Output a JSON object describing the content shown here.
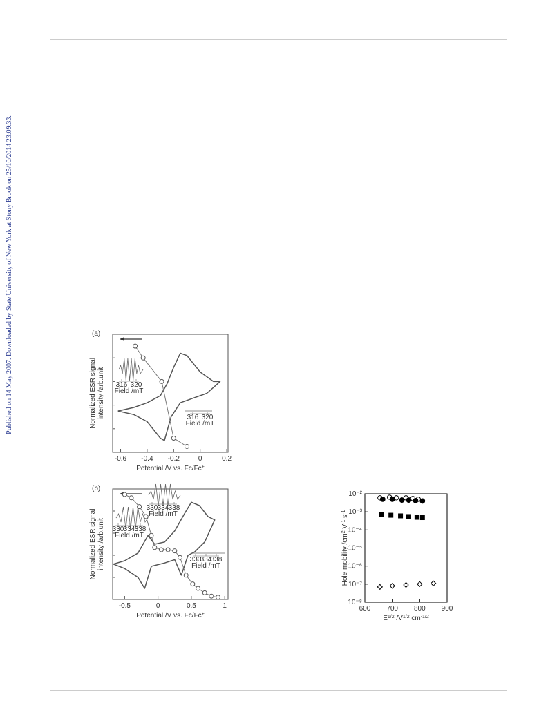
{
  "sidebar": "Published on 14 May 2007. Downloaded by State University of New York at Stony Brook on 25/10/2014 23:09:33.",
  "figures": [
    {
      "type": "line",
      "label": "(a)",
      "x_label": [
        "Potential /V vs. Fc/Fc",
        "+"
      ],
      "y_label": [
        "Normalized ESR signal",
        "intensity /arb.unit"
      ],
      "xlim": [
        -0.66,
        0.21
      ],
      "ylim": [
        0,
        1
      ],
      "xticks": [
        -0.6,
        -0.4,
        -0.2,
        0,
        0.2
      ],
      "cv": {
        "x": [
          -0.62,
          -0.5,
          -0.4,
          -0.3,
          -0.25,
          -0.2,
          -0.15,
          -0.1,
          0,
          0.1,
          0.15,
          0.05,
          -0.05,
          -0.15,
          -0.22,
          -0.27,
          -0.3,
          -0.4,
          -0.5,
          -0.62
        ],
        "y": [
          0.35,
          0.38,
          0.42,
          0.48,
          0.58,
          0.72,
          0.84,
          0.82,
          0.68,
          0.6,
          0.6,
          0.5,
          0.46,
          0.42,
          0.3,
          0.1,
          0.12,
          0.26,
          0.32,
          0.35
        ]
      },
      "esr": {
        "x": [
          -0.49,
          -0.43,
          -0.29,
          -0.2,
          -0.1
        ],
        "y": [
          0.9,
          0.8,
          0.6,
          0.12,
          0.05
        ]
      },
      "insets": [
        {
          "xticks": [
            316,
            320
          ],
          "label": "Field /mT"
        },
        {
          "xticks": [
            316,
            320
          ],
          "label": "Field /mT"
        }
      ]
    },
    {
      "type": "line",
      "label": "(b)",
      "x_label": [
        "Potential /V vs. Fc/Fc",
        "+"
      ],
      "y_label": [
        "Normalized ESR signal",
        "intensity /arb.unit"
      ],
      "xlim": [
        -0.68,
        1.05
      ],
      "ylim": [
        0,
        1
      ],
      "xticks": [
        -0.5,
        0,
        0.5,
        1
      ],
      "cv": {
        "x": [
          -0.67,
          -0.5,
          -0.3,
          -0.15,
          -0.05,
          0.1,
          0.25,
          0.4,
          0.5,
          0.62,
          0.75,
          0.85,
          0.7,
          0.55,
          0.45,
          0.35,
          0.25,
          0.1,
          -0.1,
          -0.2,
          -0.3,
          -0.5,
          -0.67
        ],
        "y": [
          0.32,
          0.35,
          0.42,
          0.58,
          0.5,
          0.52,
          0.62,
          0.78,
          0.88,
          0.85,
          0.75,
          0.72,
          0.52,
          0.43,
          0.4,
          0.22,
          0.36,
          0.33,
          0.3,
          0.1,
          0.2,
          0.28,
          0.32
        ]
      },
      "esr": {
        "x": [
          -0.5,
          -0.4,
          -0.28,
          -0.18,
          -0.1,
          -0.05,
          0.05,
          0.15,
          0.25,
          0.33,
          0.42,
          0.52,
          0.6,
          0.7,
          0.8,
          0.9
        ],
        "y": [
          0.95,
          0.92,
          0.84,
          0.75,
          0.58,
          0.47,
          0.45,
          0.45,
          0.44,
          0.38,
          0.22,
          0.14,
          0.1,
          0.06,
          0.03,
          0.02
        ]
      },
      "insets": [
        {
          "xticks": [
            330,
            334,
            338
          ],
          "label": "Field /mT"
        },
        {
          "xticks": [
            330,
            334,
            338
          ],
          "label": "Field /mT"
        },
        {
          "xticks": [
            330,
            334,
            338
          ],
          "label": "Field /mT"
        }
      ]
    }
  ],
  "mobility": {
    "type": "scatter",
    "log_y": true,
    "x_label": [
      "E",
      "1/2",
      " /V",
      "1/2",
      " cm",
      "-1/2"
    ],
    "y_label": [
      "Hole mobility /cm",
      "2",
      " V",
      "-1",
      " s",
      "-1"
    ],
    "xlim": [
      600,
      900
    ],
    "ylim": [
      1e-08,
      0.01
    ],
    "xticks": [
      600,
      700,
      800,
      900
    ],
    "yticks": [
      {
        "value": 1e-08,
        "label": "10⁻⁸"
      },
      {
        "value": 1e-07,
        "label": "10⁻⁷"
      },
      {
        "value": 1e-06,
        "label": "10⁻⁶"
      },
      {
        "value": 1e-05,
        "label": "10⁻⁵"
      },
      {
        "value": 0.0001,
        "label": "10⁻⁴"
      },
      {
        "value": 0.001,
        "label": "10⁻³"
      },
      {
        "value": 0.01,
        "label": "10⁻²"
      }
    ],
    "series": [
      {
        "marker": "circle-open",
        "color": "#000000",
        "x": [
          655,
          690,
          715,
          750,
          775,
          795
        ],
        "values": [
          0.006,
          0.0065,
          0.006,
          0.006,
          0.0055,
          0.005
        ]
      },
      {
        "marker": "circle-filled",
        "color": "#000000",
        "x": [
          665,
          700,
          735,
          760,
          785,
          810
        ],
        "values": [
          0.005,
          0.005,
          0.0045,
          0.0045,
          0.0042,
          0.004
        ]
      },
      {
        "marker": "square-filled",
        "color": "#000000",
        "x": [
          660,
          695,
          730,
          760,
          790,
          810
        ],
        "values": [
          0.0007,
          0.00065,
          0.0006,
          0.00055,
          0.0005,
          0.00048
        ]
      },
      {
        "marker": "diamond-open",
        "color": "#000000",
        "x": [
          655,
          700,
          750,
          800,
          850
        ],
        "values": [
          7e-08,
          8e-08,
          9e-08,
          1e-07,
          1.1e-07
        ]
      }
    ]
  }
}
